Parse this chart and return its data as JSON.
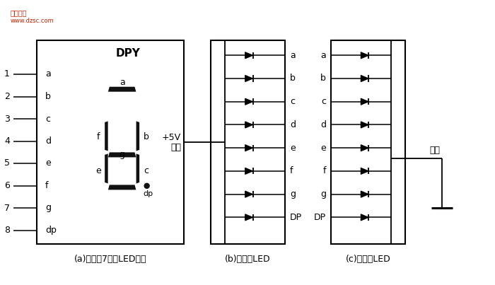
{
  "bg_color": "#ffffff",
  "fig_width": 7.0,
  "fig_height": 4.03,
  "subtitle_a": "(a)典型的7段式LED器件",
  "subtitle_b": "(b)共阳极LED",
  "subtitle_c": "(c)共阴极LED",
  "pin_numbers": [
    "1",
    "2",
    "3",
    "4",
    "5",
    "6",
    "7",
    "8"
  ],
  "pin_letters_a": [
    "a",
    "b",
    "c",
    "d",
    "e",
    "f",
    "g",
    "dp"
  ],
  "diode_labels_b": [
    "a",
    "b",
    "c",
    "d",
    "e",
    "f",
    "g",
    "DP"
  ],
  "diode_labels_c": [
    "a",
    "b",
    "c",
    "d",
    "e",
    "f",
    "g",
    "DP"
  ],
  "label_plus5v": "+5V",
  "label_yangji": "阳极",
  "label_yinji": "阴极",
  "text_DPY": "DPY",
  "text_color": "#000000",
  "line_color": "#000000",
  "seg_color": "#111111"
}
